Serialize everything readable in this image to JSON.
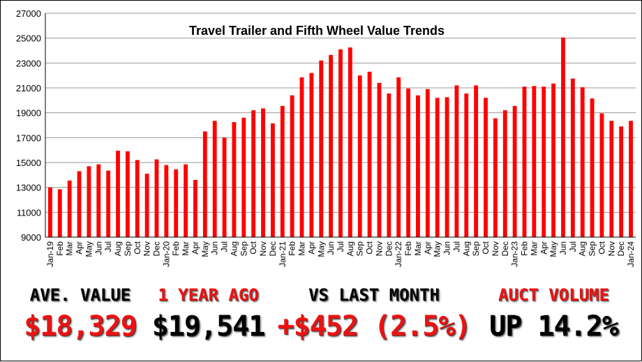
{
  "chart_data": {
    "type": "bar",
    "title": "Travel Trailer and Fifth Wheel Value Trends",
    "xlabel": "",
    "ylabel": "",
    "ylim": [
      9000,
      27000
    ],
    "yticks": [
      9000,
      11000,
      13000,
      15000,
      17000,
      19000,
      21000,
      23000,
      25000,
      27000
    ],
    "grid": "horizontal",
    "bar_color": "#ff0000",
    "categories": [
      "Jan-19",
      "Feb",
      "Mar",
      "Apr",
      "May",
      "Jun",
      "Jul",
      "Aug",
      "Sep",
      "Oct",
      "Nov",
      "Dec",
      "Jan-20",
      "Feb",
      "Mar",
      "Apr",
      "May",
      "Jun",
      "Jul",
      "Aug",
      "Sep",
      "Oct",
      "Nov",
      "Dec",
      "Jan-21",
      "Feb",
      "Mar",
      "Apr",
      "May",
      "Jun",
      "Jul",
      "Aug",
      "Sep",
      "Oct",
      "Nov",
      "Dec",
      "Jan-22",
      "Feb",
      "Mar",
      "Apr",
      "May",
      "Jun",
      "Jul",
      "Aug",
      "Sep",
      "Oct",
      "Nov",
      "Dec",
      "Jan-23",
      "Feb",
      "Mar",
      "Apr",
      "May",
      "Jun",
      "Jul",
      "Aug",
      "Sep",
      "Oct",
      "Nov",
      "Dec",
      "Jan-24"
    ],
    "values": [
      13000,
      12850,
      13550,
      14300,
      14700,
      14850,
      14350,
      15950,
      15900,
      15200,
      14100,
      15250,
      14800,
      14450,
      14850,
      13600,
      17500,
      18350,
      17000,
      18250,
      18600,
      19200,
      19350,
      18150,
      19550,
      20400,
      21850,
      22200,
      23200,
      23650,
      24100,
      24250,
      22000,
      22300,
      21400,
      20550,
      21850,
      20950,
      20400,
      20900,
      20200,
      20250,
      21200,
      20550,
      21200,
      20200,
      18550,
      19200,
      19550,
      21100,
      21150,
      21100,
      21350,
      25050,
      21750,
      21050,
      20150,
      18950,
      18350,
      17900,
      18350
    ]
  },
  "stats": [
    {
      "label": "AVE. VALUE",
      "value": "$18,329",
      "label_color": "black",
      "value_color": "red"
    },
    {
      "label": "1 YEAR AGO",
      "value": "$19,541",
      "label_color": "red",
      "value_color": "black"
    },
    {
      "label": "VS LAST MONTH",
      "value": "+$452 (2.5%)",
      "label_color": "black",
      "value_color": "red"
    },
    {
      "label": "AUCT VOLUME",
      "value": "UP 14.2%",
      "label_color": "red",
      "value_color": "black"
    }
  ]
}
